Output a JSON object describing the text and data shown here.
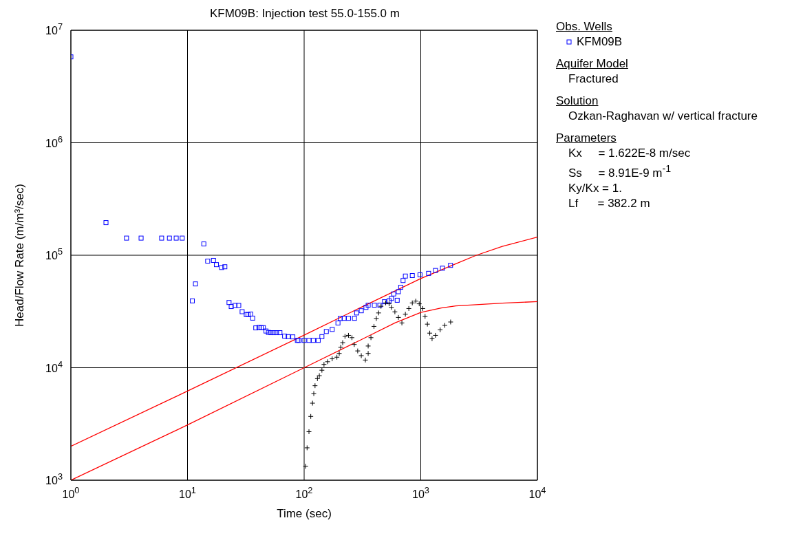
{
  "chart_data": {
    "type": "scatter",
    "title": "KFM09B: Injection test 55.0-155.0 m",
    "xlabel": "Time (sec)",
    "ylabel": "Head/Flow Rate (m/m³/sec)",
    "log": "xy",
    "grid": true,
    "legend": "right",
    "legend_title": "Obs. Wells",
    "xlim": [
      1,
      10000
    ],
    "ylim": [
      1000,
      10000000
    ],
    "xticks": [
      {
        "value": 1,
        "label": "10$^{0}$"
      },
      {
        "value": 10,
        "label": "10$^{1}$"
      },
      {
        "value": 100,
        "label": "10$^{2}$"
      },
      {
        "value": 1000,
        "label": "10$^{3}$"
      },
      {
        "value": 10000,
        "label": "10$^{4}$"
      }
    ],
    "yticks": [
      {
        "value": 1000,
        "label": "10$^{3}$"
      },
      {
        "value": 10000,
        "label": "10$^{4}$"
      },
      {
        "value": 100000,
        "label": "10$^{5}$"
      },
      {
        "value": 1000000,
        "label": "10$^{6}$"
      },
      {
        "value": 10000000,
        "label": "10$^{7}$"
      }
    ],
    "annotations": [
      "Aquifer Model",
      "Fractured",
      "Solution",
      "Ozkan-Raghavan w/ vertical fracture",
      "Parameters",
      "Kx     = 1.622E-8 m/sec",
      "Ss     = 8.91E-9 m$^{-1}$",
      "Ky/Kx = 1.",
      "Lf      = 382.2 m"
    ],
    "series": [
      {
        "type": "line",
        "color": "#ff0000",
        "x": [
          1,
          10,
          100,
          300,
          1000,
          2000,
          3000,
          5000,
          10000
        ],
        "values": [
          2000,
          6200,
          19500,
          34000,
          62000,
          84000,
          100000,
          120000,
          145000
        ]
      },
      {
        "type": "line",
        "color": "#ff0000",
        "x": [
          1,
          10,
          100,
          300,
          600,
          1000,
          1500,
          2000,
          5000,
          10000
        ],
        "values": [
          1000,
          3100,
          10000,
          17500,
          25000,
          31000,
          34000,
          35500,
          37500,
          38700
        ]
      },
      {
        "type": "scatter",
        "name": "KFM09B",
        "color": "#0000ff",
        "marker": "square",
        "x": [
          1,
          2,
          3,
          4,
          6,
          7,
          8,
          9,
          11,
          11.7,
          13.8,
          14.9,
          16.7,
          17.7,
          19.6,
          20.9,
          22.7,
          23.7,
          25.5,
          27.5,
          29.4,
          31.9,
          33,
          34.8,
          36.2,
          38.5,
          41,
          42.8,
          44.7,
          47.1,
          49.4,
          52,
          55,
          58,
          62,
          68,
          73,
          80,
          87.5,
          90,
          100,
          110,
          120,
          132,
          142,
          155,
          174,
          195,
          204,
          220,
          240,
          270,
          282,
          309,
          339,
          354,
          400,
          446,
          488,
          535,
          560,
          586,
          628,
          642,
          673,
          705,
          738,
          846,
          985,
          1167,
          1337,
          1535,
          1800
        ],
        "values": [
          5800000,
          195000,
          142000,
          142000,
          142000,
          142000,
          142000,
          142000,
          39300,
          55600,
          126000,
          88700,
          90000,
          82500,
          77800,
          79000,
          38000,
          35000,
          35800,
          35800,
          31500,
          29700,
          29700,
          30000,
          27600,
          22600,
          22800,
          22700,
          22700,
          21200,
          20600,
          20500,
          20500,
          20500,
          20500,
          19100,
          18900,
          18800,
          17500,
          17500,
          17500,
          17500,
          17500,
          17500,
          18900,
          21000,
          21900,
          25000,
          27400,
          27500,
          27500,
          27500,
          30700,
          32100,
          34400,
          36000,
          36000,
          36000,
          38600,
          39400,
          41300,
          45300,
          39800,
          47400,
          51900,
          59600,
          65300,
          66000,
          67000,
          69000,
          73200,
          76700,
          81300
        ]
      },
      {
        "type": "scatter",
        "color": "#000000",
        "marker": "cross",
        "x": [
          103,
          106,
          110,
          114,
          118,
          121,
          124,
          130,
          135,
          142,
          148,
          159,
          174,
          191,
          200,
          206,
          214,
          224,
          240,
          257,
          269,
          288,
          309,
          335,
          354,
          354,
          374,
          397,
          416,
          435,
          456,
          500,
          535,
          560,
          600,
          643,
          689,
          738,
          790,
          846,
          906,
          970,
          1040,
          1089,
          1140,
          1194,
          1250,
          1337,
          1466,
          1607,
          1803
        ],
        "values": [
          1330,
          1940,
          2700,
          3690,
          4840,
          5890,
          6920,
          8000,
          8500,
          9500,
          10700,
          11300,
          12000,
          12400,
          13400,
          15200,
          16700,
          19000,
          19400,
          18500,
          16100,
          14100,
          12800,
          11700,
          13400,
          15600,
          18500,
          23300,
          27400,
          30700,
          35200,
          37700,
          37000,
          34400,
          31400,
          28000,
          25000,
          29900,
          33600,
          37700,
          39100,
          37000,
          33600,
          28600,
          24400,
          20300,
          18100,
          19400,
          21700,
          23800,
          25500
        ]
      }
    ]
  }
}
